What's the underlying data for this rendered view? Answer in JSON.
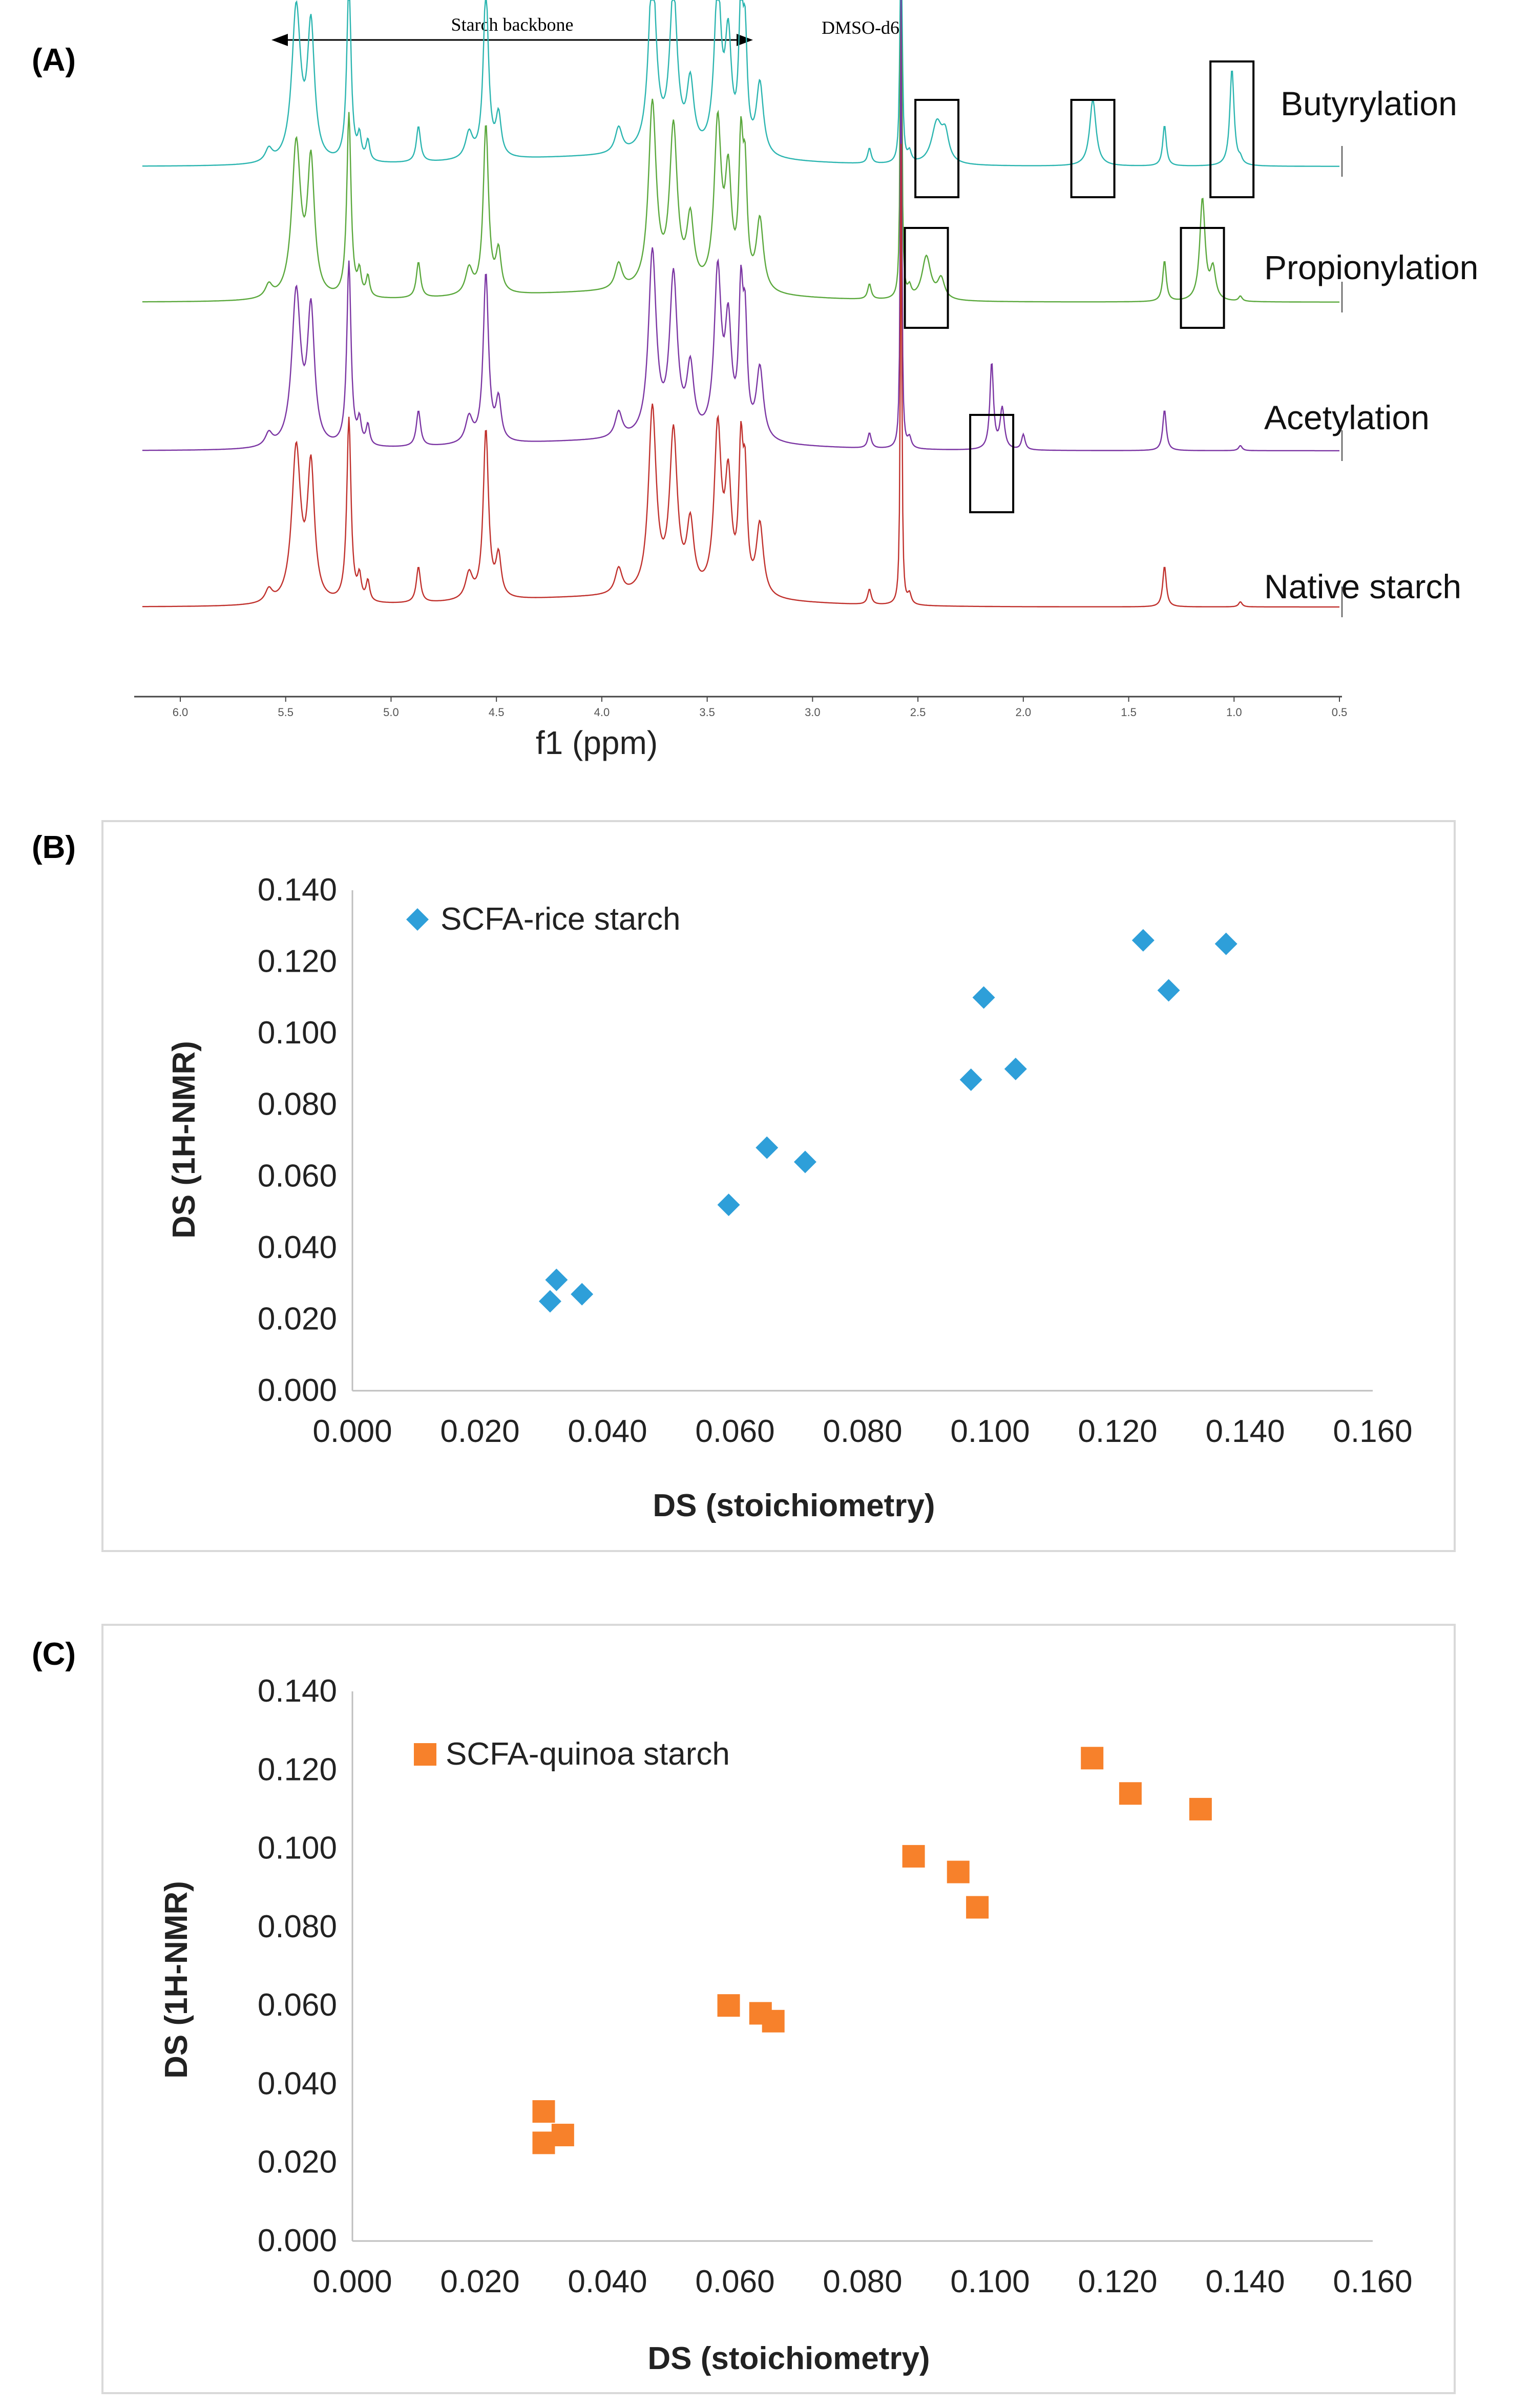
{
  "chart_data": [
    {
      "panel": "(A)",
      "type": "line",
      "title": "",
      "xlabel": "f1 (ppm)",
      "ylabel": "",
      "xlim": [
        6.0,
        0.5
      ],
      "x_ticks": [
        "6.0",
        "5.5",
        "5.0",
        "4.5",
        "4.0",
        "3.5",
        "3.0",
        "2.5",
        "2.0",
        "1.5",
        "1.0",
        "0.5"
      ],
      "annotations": {
        "backbone": "Starch backbone",
        "solvent": "DMSO-d6"
      },
      "series": [
        {
          "name": "Butyrylation",
          "color": "#2bb5b0",
          "highlight_ppm": [
            2.41,
            1.67,
            1.01
          ]
        },
        {
          "name": "Propionylation",
          "color": "#5aa83c",
          "highlight_ppm": [
            2.46,
            1.15
          ]
        },
        {
          "name": "Acetylation",
          "color": "#7b35a3",
          "highlight_ppm": [
            2.15
          ]
        },
        {
          "name": "Native starch",
          "color": "#c0302c",
          "highlight_ppm": []
        }
      ]
    },
    {
      "panel": "(B)",
      "type": "scatter",
      "title": "",
      "xlabel": "DS (stoichiometry)",
      "ylabel": "DS (1H-NMR)",
      "xlim": [
        0.0,
        0.16
      ],
      "ylim": [
        0.0,
        0.14
      ],
      "x_ticks": [
        "0.000",
        "0.020",
        "0.040",
        "0.060",
        "0.080",
        "0.100",
        "0.120",
        "0.140",
        "0.160"
      ],
      "y_ticks": [
        "0.000",
        "0.020",
        "0.040",
        "0.060",
        "0.080",
        "0.100",
        "0.120",
        "0.140"
      ],
      "legend": "top-left",
      "series": [
        {
          "name": "SCFA-rice starch",
          "marker": "diamond",
          "color": "#2e9fd9",
          "x": [
            0.031,
            0.032,
            0.036,
            0.059,
            0.065,
            0.071,
            0.097,
            0.099,
            0.104,
            0.124,
            0.128,
            0.137
          ],
          "y": [
            0.025,
            0.031,
            0.027,
            0.052,
            0.068,
            0.064,
            0.087,
            0.11,
            0.09,
            0.126,
            0.112,
            0.125
          ]
        }
      ]
    },
    {
      "panel": "(C)",
      "type": "scatter",
      "title": "",
      "xlabel": "DS (stoichiometry)",
      "ylabel": "DS (1H-NMR)",
      "xlim": [
        0.0,
        0.16
      ],
      "ylim": [
        0.0,
        0.14
      ],
      "x_ticks": [
        "0.000",
        "0.020",
        "0.040",
        "0.060",
        "0.080",
        "0.100",
        "0.120",
        "0.140",
        "0.160"
      ],
      "y_ticks": [
        "0.000",
        "0.020",
        "0.040",
        "0.060",
        "0.080",
        "0.100",
        "0.120",
        "0.140"
      ],
      "legend": "top-left",
      "series": [
        {
          "name": "SCFA-quinoa starch",
          "marker": "square",
          "color": "#f7812b",
          "x": [
            0.03,
            0.03,
            0.033,
            0.059,
            0.064,
            0.066,
            0.088,
            0.095,
            0.098,
            0.116,
            0.122,
            0.133
          ],
          "y": [
            0.025,
            0.033,
            0.027,
            0.06,
            0.058,
            0.056,
            0.098,
            0.094,
            0.085,
            0.123,
            0.114,
            0.11
          ]
        }
      ]
    }
  ]
}
